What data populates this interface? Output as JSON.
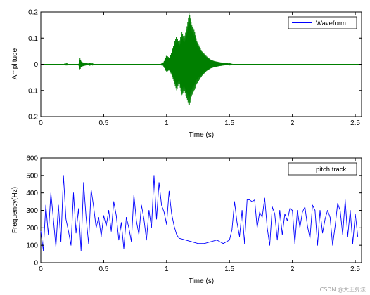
{
  "chart_data": [
    {
      "type": "line",
      "title": "",
      "xlabel": "Time (s)",
      "ylabel": "Amplitude",
      "xlim": [
        0,
        2.55
      ],
      "ylim": [
        -0.2,
        0.2
      ],
      "x_ticks": [
        "0",
        "0.5",
        "1",
        "1.5",
        "2",
        "2.5"
      ],
      "x_tick_values": [
        0,
        0.5,
        1,
        1.5,
        2,
        2.5
      ],
      "y_ticks": [
        "0.2",
        "0.1",
        "0",
        "-0.1",
        "-0.2"
      ],
      "y_tick_values": [
        0.2,
        0.1,
        0,
        -0.1,
        -0.2
      ],
      "grid": false,
      "legend_position": "top-right",
      "series": [
        {
          "name": "Waveform",
          "legend_swatch_color": "#0000ff",
          "color": "#007f00",
          "envelope": {
            "x": [
              0,
              0.18,
              0.2,
              0.21,
              0.22,
              0.3,
              0.31,
              0.32,
              0.33,
              0.36,
              0.38,
              0.39,
              0.4,
              0.41,
              0.42,
              0.95,
              0.97,
              0.98,
              1.0,
              1.02,
              1.04,
              1.06,
              1.08,
              1.1,
              1.12,
              1.14,
              1.16,
              1.18,
              1.2,
              1.22,
              1.24,
              1.26,
              1.28,
              1.3,
              1.32,
              1.35,
              1.38,
              1.42,
              1.46,
              1.5,
              1.53,
              2.55
            ],
            "upper": [
              0,
              0,
              0.003,
              0.002,
              0,
              0,
              0.026,
              0.012,
              0.008,
              0.004,
              0.003,
              0.006,
              0.002,
              0.005,
              0,
              0,
              0.004,
              0.012,
              0.035,
              0.025,
              0.045,
              0.08,
              0.11,
              0.08,
              0.125,
              0.1,
              0.14,
              0.2,
              0.15,
              0.13,
              0.09,
              0.07,
              0.05,
              0.04,
              0.03,
              0.018,
              0.012,
              0.008,
              0.005,
              0.003,
              0,
              0
            ],
            "lower": [
              0,
              0,
              -0.003,
              -0.002,
              0,
              0,
              -0.022,
              -0.012,
              -0.008,
              -0.004,
              -0.003,
              -0.006,
              -0.002,
              -0.005,
              0,
              0,
              -0.004,
              -0.012,
              -0.03,
              -0.022,
              -0.04,
              -0.07,
              -0.1,
              -0.07,
              -0.12,
              -0.1,
              -0.13,
              -0.16,
              -0.12,
              -0.1,
              -0.075,
              -0.06,
              -0.045,
              -0.035,
              -0.025,
              -0.016,
              -0.011,
              -0.007,
              -0.004,
              -0.002,
              0,
              0
            ]
          }
        }
      ]
    },
    {
      "type": "line",
      "title": "",
      "xlabel": "Time (s)",
      "ylabel": "Frequency(Hz)",
      "xlim": [
        0,
        2.55
      ],
      "ylim": [
        0,
        600
      ],
      "x_ticks": [
        "0",
        "0.5",
        "1",
        "1.5",
        "2",
        "2.5"
      ],
      "x_tick_values": [
        0,
        0.5,
        1,
        1.5,
        2,
        2.5
      ],
      "y_ticks": [
        "600",
        "500",
        "400",
        "300",
        "200",
        "100",
        "0"
      ],
      "y_tick_values": [
        600,
        500,
        400,
        300,
        200,
        100,
        0
      ],
      "grid": false,
      "legend_position": "top-right",
      "series": [
        {
          "name": "pitch track",
          "color": "#0000ff",
          "x": [
            0,
            0.02,
            0.04,
            0.06,
            0.08,
            0.1,
            0.12,
            0.14,
            0.16,
            0.18,
            0.2,
            0.22,
            0.24,
            0.26,
            0.28,
            0.3,
            0.32,
            0.34,
            0.36,
            0.38,
            0.4,
            0.42,
            0.44,
            0.46,
            0.48,
            0.5,
            0.52,
            0.54,
            0.56,
            0.58,
            0.6,
            0.62,
            0.64,
            0.66,
            0.68,
            0.7,
            0.72,
            0.74,
            0.76,
            0.78,
            0.8,
            0.82,
            0.84,
            0.86,
            0.88,
            0.9,
            0.92,
            0.94,
            0.96,
            0.98,
            1.0,
            1.02,
            1.04,
            1.06,
            1.08,
            1.1,
            1.15,
            1.2,
            1.25,
            1.3,
            1.35,
            1.4,
            1.45,
            1.5,
            1.52,
            1.54,
            1.56,
            1.58,
            1.6,
            1.62,
            1.64,
            1.66,
            1.68,
            1.7,
            1.72,
            1.74,
            1.76,
            1.78,
            1.8,
            1.82,
            1.84,
            1.86,
            1.88,
            1.9,
            1.92,
            1.94,
            1.96,
            1.98,
            2.0,
            2.02,
            2.04,
            2.06,
            2.08,
            2.1,
            2.12,
            2.14,
            2.16,
            2.18,
            2.2,
            2.22,
            2.24,
            2.26,
            2.28,
            2.3,
            2.32,
            2.34,
            2.36,
            2.38,
            2.4,
            2.42,
            2.44,
            2.46,
            2.48,
            2.5,
            2.52
          ],
          "y": [
            180,
            70,
            330,
            160,
            400,
            250,
            90,
            330,
            120,
            500,
            250,
            180,
            100,
            400,
            170,
            310,
            70,
            460,
            260,
            110,
            420,
            320,
            200,
            260,
            150,
            270,
            210,
            300,
            180,
            350,
            270,
            130,
            230,
            80,
            260,
            200,
            120,
            390,
            240,
            160,
            330,
            250,
            130,
            300,
            200,
            500,
            250,
            460,
            330,
            290,
            220,
            410,
            280,
            210,
            160,
            140,
            130,
            120,
            110,
            110,
            120,
            130,
            110,
            130,
            190,
            350,
            230,
            150,
            300,
            110,
            360,
            360,
            350,
            360,
            200,
            290,
            260,
            370,
            200,
            100,
            320,
            280,
            130,
            300,
            160,
            280,
            240,
            310,
            300,
            110,
            300,
            200,
            290,
            320,
            210,
            140,
            330,
            300,
            100,
            300,
            170,
            250,
            300,
            260,
            100,
            210,
            340,
            300,
            160,
            360,
            150,
            300,
            110,
            280,
            150
          ]
        }
      ]
    }
  ],
  "watermark": "CSDN @大王算法"
}
